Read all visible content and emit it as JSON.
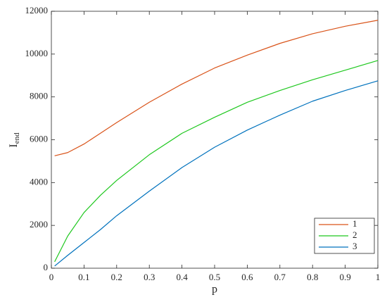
{
  "chart_data": {
    "type": "line",
    "xlabel": "p",
    "ylabel": "I",
    "ylabel_sub": "end",
    "x": [
      0.01,
      0.05,
      0.1,
      0.15,
      0.2,
      0.3,
      0.4,
      0.5,
      0.6,
      0.7,
      0.8,
      0.9,
      1
    ],
    "series": [
      {
        "name": "1",
        "color": "#d95319",
        "values": [
          5250,
          5400,
          5800,
          6300,
          6800,
          7750,
          8600,
          9350,
          9950,
          10500,
          10950,
          11300,
          11580
        ]
      },
      {
        "name": "2",
        "color": "#1fc81f",
        "values": [
          300,
          1500,
          2600,
          3400,
          4100,
          5300,
          6300,
          7050,
          7750,
          8300,
          8800,
          9250,
          9700
        ]
      },
      {
        "name": "3",
        "color": "#0072bd",
        "values": [
          100,
          600,
          1200,
          1800,
          2450,
          3600,
          4700,
          5650,
          6450,
          7150,
          7800,
          8300,
          8750
        ]
      }
    ],
    "xlim": [
      0,
      1
    ],
    "xticks": [
      0,
      0.1,
      0.2,
      0.3,
      0.4,
      0.5,
      0.6,
      0.7,
      0.8,
      0.9,
      1
    ],
    "ylim": [
      0,
      12000
    ],
    "yticks": [
      0,
      2000,
      4000,
      6000,
      8000,
      10000,
      12000
    ],
    "legend": "lower right"
  }
}
